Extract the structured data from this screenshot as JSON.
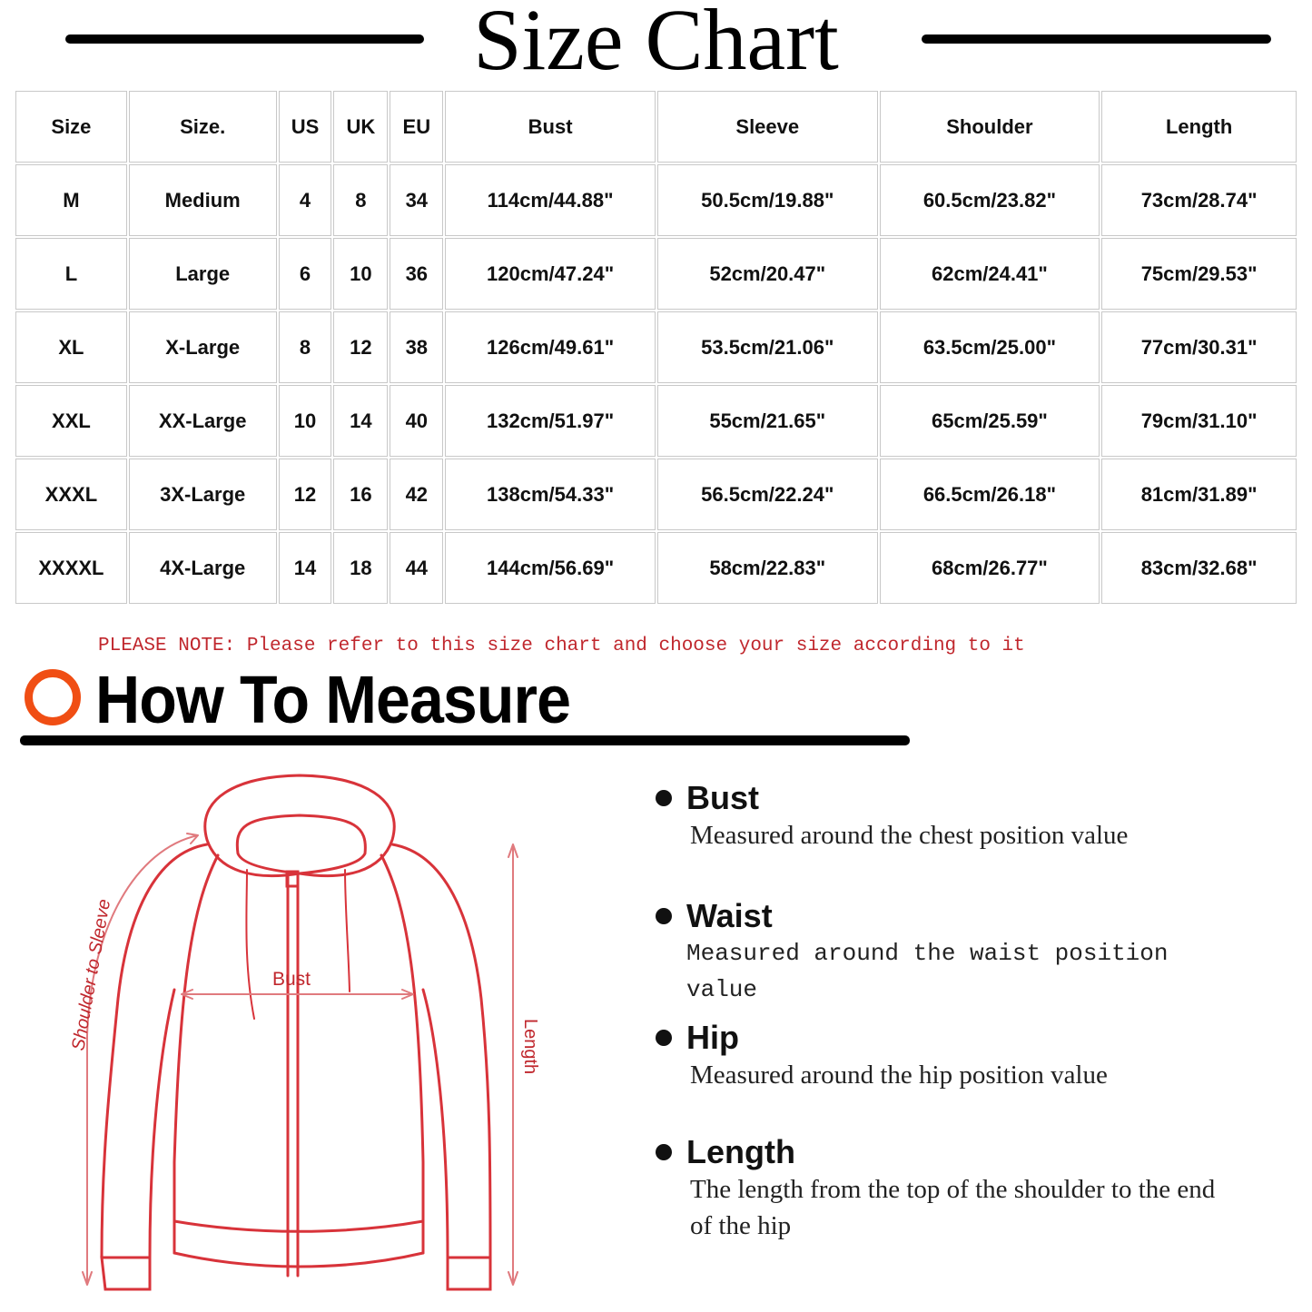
{
  "title": "Size Chart",
  "table": {
    "headers": [
      "Size",
      "Size.",
      "US",
      "UK",
      "EU",
      "Bust",
      "Sleeve",
      "Shoulder",
      "Length"
    ],
    "rows": [
      [
        "M",
        "Medium",
        "4",
        "8",
        "34",
        "114cm/44.88\"",
        "50.5cm/19.88\"",
        "60.5cm/23.82\"",
        "73cm/28.74\""
      ],
      [
        "L",
        "Large",
        "6",
        "10",
        "36",
        "120cm/47.24\"",
        "52cm/20.47\"",
        "62cm/24.41\"",
        "75cm/29.53\""
      ],
      [
        "XL",
        "X-Large",
        "8",
        "12",
        "38",
        "126cm/49.61\"",
        "53.5cm/21.06\"",
        "63.5cm/25.00\"",
        "77cm/30.31\""
      ],
      [
        "XXL",
        "XX-Large",
        "10",
        "14",
        "40",
        "132cm/51.97\"",
        "55cm/21.65\"",
        "65cm/25.59\"",
        "79cm/31.10\""
      ],
      [
        "XXXL",
        "3X-Large",
        "12",
        "16",
        "42",
        "138cm/54.33\"",
        "56.5cm/22.24\"",
        "66.5cm/26.18\"",
        "81cm/31.89\""
      ],
      [
        "XXXXL",
        "4X-Large",
        "14",
        "18",
        "44",
        "144cm/56.69\"",
        "58cm/22.83\"",
        "68cm/26.77\"",
        "83cm/32.68\""
      ]
    ]
  },
  "note": "PLEASE NOTE: Please refer to this size chart and choose your size according to it",
  "how_to": {
    "title": "How To Measure",
    "accent": "#f04e14",
    "diagram_color": "#d8333a"
  },
  "diagram": {
    "bust": "Bust",
    "sleeve": "Shoulder to Sleeve",
    "length": "Length"
  },
  "items": [
    {
      "name": "Bust",
      "desc": "Measured around the chest position value"
    },
    {
      "name": "Waist",
      "desc": "Measured around the waist position value"
    },
    {
      "name": "Hip",
      "desc": "Measured around the  hip position value"
    },
    {
      "name": "Length",
      "desc": "The length from the top of the shoulder to the end of the hip"
    }
  ]
}
